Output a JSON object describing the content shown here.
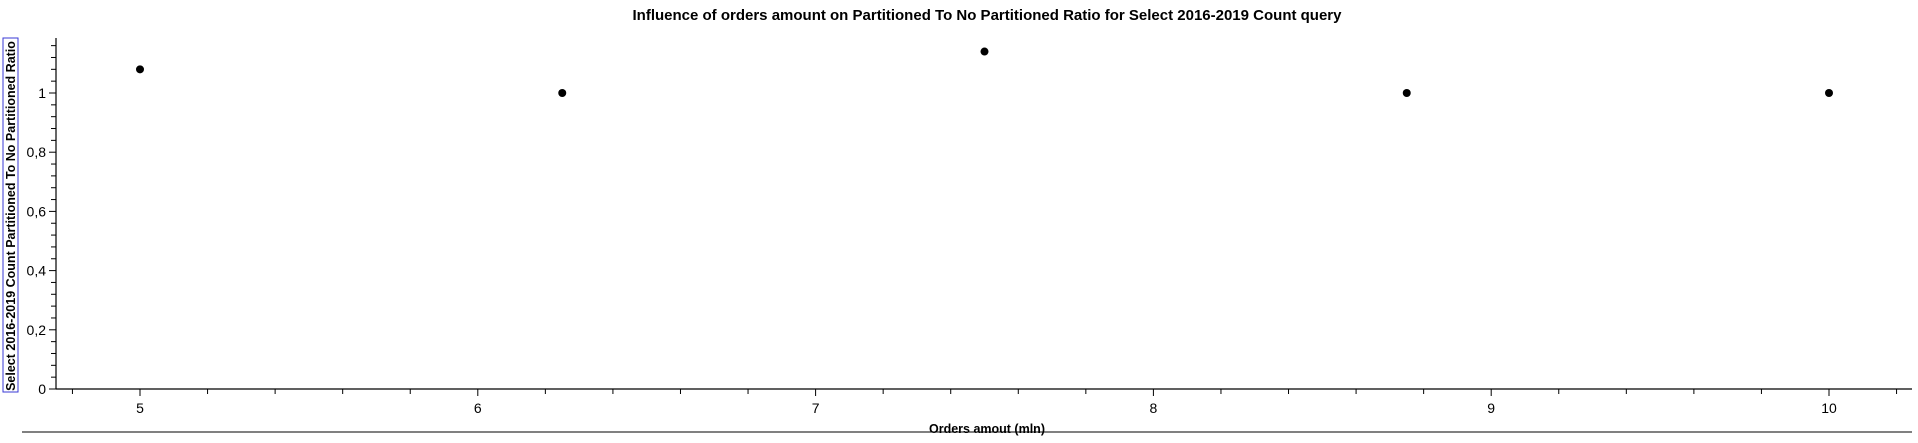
{
  "chart_data": {
    "type": "scatter",
    "title": "Influence of orders amount on Partitioned To No Partitioned Ratio for Select 2016-2019 Count query",
    "xlabel": "Orders amout (mln)",
    "ylabel": "Select 2016-2019 Count Partitioned To No Partitioned Ratio",
    "x": [
      5,
      6.25,
      7.5,
      8.75,
      10
    ],
    "y": [
      1.08,
      1.0,
      1.14,
      1.0,
      1.0
    ],
    "xlim": [
      4.75,
      10.25
    ],
    "ylim": [
      0,
      1.2
    ],
    "x_ticks": [
      {
        "value": 5,
        "label": "5"
      },
      {
        "value": 6,
        "label": "6"
      },
      {
        "value": 7,
        "label": "7"
      },
      {
        "value": 8,
        "label": "8"
      },
      {
        "value": 9,
        "label": "9"
      },
      {
        "value": 10,
        "label": "10"
      }
    ],
    "y_ticks": [
      {
        "value": 0,
        "label": "0"
      },
      {
        "value": 0.2,
        "label": "0,2"
      },
      {
        "value": 0.4,
        "label": "0,4"
      },
      {
        "value": 0.6,
        "label": "0,6"
      },
      {
        "value": 0.8,
        "label": "0,8"
      },
      {
        "value": 1.0,
        "label": "1"
      }
    ],
    "grid": false,
    "legend": "none",
    "colors": {
      "point": "#000000",
      "axis": "#000000",
      "ylabel_frame": "#3a3ad6"
    }
  }
}
